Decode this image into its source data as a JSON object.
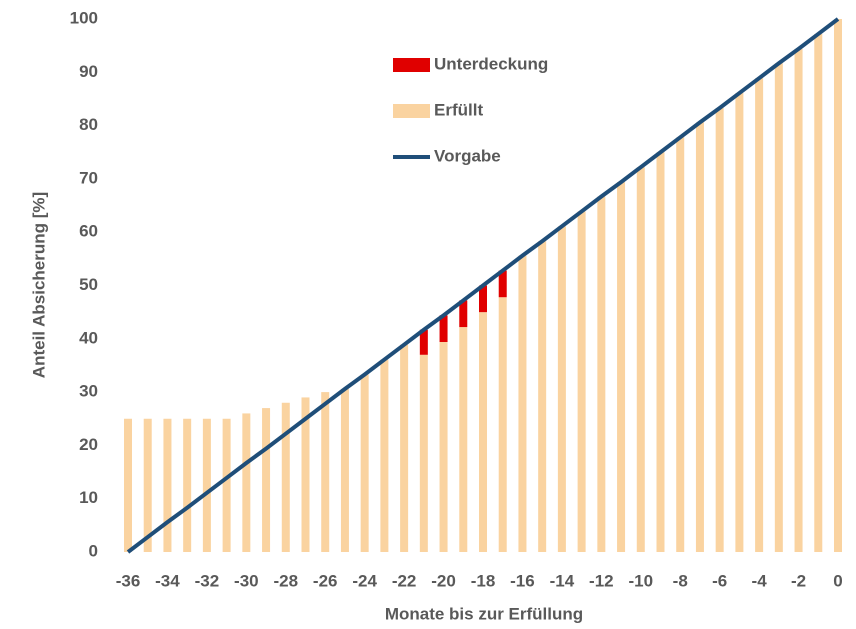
{
  "chart_data": {
    "type": "bar",
    "x_label": "Monate bis zur Erfüllung",
    "y_label": "Anteil Absicherung [%]",
    "x": [
      -36,
      -35,
      -34,
      -33,
      -32,
      -31,
      -30,
      -29,
      -28,
      -27,
      -26,
      -25,
      -24,
      -23,
      -22,
      -21,
      -20,
      -19,
      -18,
      -17,
      -16,
      -15,
      -14,
      -13,
      -12,
      -11,
      -10,
      -9,
      -8,
      -7,
      -6,
      -5,
      -4,
      -3,
      -2,
      -1,
      0
    ],
    "series": [
      {
        "name": "Unterdeckung",
        "color": "#e00000",
        "stack_on": "Erfüllt",
        "values": [
          null,
          null,
          null,
          null,
          null,
          null,
          null,
          null,
          null,
          null,
          null,
          null,
          null,
          null,
          null,
          4.7,
          5,
          5,
          5,
          5,
          null,
          null,
          null,
          null,
          null,
          null,
          null,
          null,
          null,
          null,
          null,
          null,
          null,
          null,
          null,
          null,
          null
        ]
      },
      {
        "name": "Erfüllt",
        "color": "#fad3a0",
        "values": [
          25,
          25,
          25,
          25,
          25,
          25,
          26,
          27,
          28,
          29,
          30,
          30.6,
          33.3,
          36.1,
          38.9,
          37,
          39.4,
          42.2,
          45,
          47.8,
          55.6,
          58.3,
          61.1,
          63.9,
          66.7,
          69.4,
          72.2,
          75,
          77.8,
          80.6,
          83.3,
          86.1,
          88.9,
          91.7,
          94.4,
          97.2,
          100
        ]
      },
      {
        "name": "Vorgabe",
        "color": "#1f4e79",
        "kind": "line",
        "values": [
          0,
          2.8,
          5.6,
          8.3,
          11.1,
          13.9,
          16.7,
          19.4,
          22.2,
          25,
          27.8,
          30.6,
          33.3,
          36.1,
          38.9,
          41.7,
          44.4,
          47.2,
          50,
          52.8,
          55.6,
          58.3,
          61.1,
          63.9,
          66.7,
          69.4,
          72.2,
          75,
          77.8,
          80.6,
          83.3,
          86.1,
          88.9,
          91.7,
          94.4,
          97.2,
          100
        ]
      }
    ],
    "xlim": [
      -36,
      0
    ],
    "xticks": [
      -36,
      -34,
      -32,
      -30,
      -28,
      -26,
      -24,
      -22,
      -20,
      -18,
      -16,
      -14,
      -12,
      -10,
      -8,
      -6,
      -4,
      -2,
      0
    ],
    "ylim": [
      0,
      100
    ],
    "yticks": [
      0,
      10,
      20,
      30,
      40,
      50,
      60,
      70,
      80,
      90,
      100
    ],
    "grid": false
  }
}
